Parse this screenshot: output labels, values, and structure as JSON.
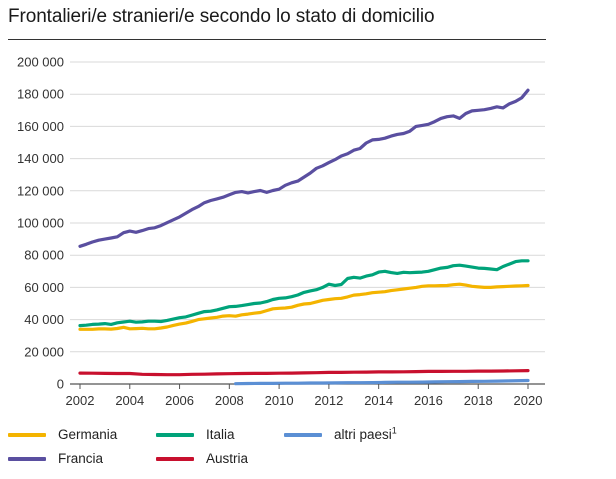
{
  "title": "Frontalieri/e stranieri/e secondo lo stato di domicilio",
  "chart_data": {
    "type": "line",
    "title": "Frontalieri/e stranieri/e secondo lo stato di domicilio",
    "xlabel": "",
    "ylabel": "",
    "xlim": [
      2002,
      2020
    ],
    "ylim": [
      0,
      200000
    ],
    "x_ticks": [
      2002,
      2004,
      2006,
      2008,
      2010,
      2012,
      2014,
      2016,
      2018,
      2020
    ],
    "y_ticks": [
      0,
      20000,
      40000,
      60000,
      80000,
      100000,
      120000,
      140000,
      160000,
      180000,
      200000
    ],
    "y_tick_labels": [
      "0",
      "20 000",
      "40 000",
      "60 000",
      "80 000",
      "100 000",
      "120 000",
      "140 000",
      "160 000",
      "180 000",
      "200 000"
    ],
    "x_tick_labels": [
      "2002",
      "2004",
      "2006",
      "2008",
      "2010",
      "2012",
      "2014",
      "2016",
      "2018",
      "2020"
    ],
    "grid": "horizontal",
    "legend_placement": "bottom",
    "series": [
      {
        "name": "Germania",
        "color": "#f4b400",
        "x": [
          2002.0,
          2002.25,
          2002.5,
          2002.75,
          2003.0,
          2003.25,
          2003.5,
          2003.75,
          2004.0,
          2004.25,
          2004.5,
          2004.75,
          2005.0,
          2005.25,
          2005.5,
          2005.75,
          2006.0,
          2006.25,
          2006.5,
          2006.75,
          2007.0,
          2007.25,
          2007.5,
          2007.75,
          2008.0,
          2008.25,
          2008.5,
          2008.75,
          2009.0,
          2009.25,
          2009.5,
          2009.75,
          2010.0,
          2010.25,
          2010.5,
          2010.75,
          2011.0,
          2011.25,
          2011.5,
          2011.75,
          2012.0,
          2012.25,
          2012.5,
          2012.75,
          2013.0,
          2013.25,
          2013.5,
          2013.75,
          2014.0,
          2014.25,
          2014.5,
          2014.75,
          2015.0,
          2015.25,
          2015.5,
          2015.75,
          2016.0,
          2016.25,
          2016.5,
          2016.75,
          2017.0,
          2017.25,
          2017.5,
          2017.75,
          2018.0,
          2018.25,
          2018.5,
          2018.75,
          2019.0,
          2019.25,
          2019.5,
          2019.75,
          2020.0
        ],
        "values": [
          34000,
          34000,
          34000,
          34200,
          34200,
          34100,
          34500,
          35200,
          34300,
          34400,
          34600,
          34300,
          34300,
          34800,
          35400,
          36400,
          37200,
          37800,
          38900,
          40000,
          40500,
          41000,
          41400,
          42200,
          42400,
          42100,
          43000,
          43400,
          44000,
          44400,
          45600,
          46700,
          47000,
          47200,
          47700,
          48900,
          49700,
          50000,
          51000,
          52000,
          52500,
          53000,
          53200,
          54100,
          55200,
          55500,
          56000,
          56700,
          57000,
          57300,
          58000,
          58500,
          59000,
          59500,
          60000,
          60700,
          61000,
          61000,
          61100,
          61200,
          61700,
          62000,
          61400,
          60700,
          60300,
          60000,
          60000,
          60300,
          60500,
          60700,
          60900,
          61000,
          61200
        ]
      },
      {
        "name": "Italia",
        "color": "#00a37a",
        "x": [
          2002.0,
          2002.25,
          2002.5,
          2002.75,
          2003.0,
          2003.25,
          2003.5,
          2003.75,
          2004.0,
          2004.25,
          2004.5,
          2004.75,
          2005.0,
          2005.25,
          2005.5,
          2005.75,
          2006.0,
          2006.25,
          2006.5,
          2006.75,
          2007.0,
          2007.25,
          2007.5,
          2007.75,
          2008.0,
          2008.25,
          2008.5,
          2008.75,
          2009.0,
          2009.25,
          2009.5,
          2009.75,
          2010.0,
          2010.25,
          2010.5,
          2010.75,
          2011.0,
          2011.25,
          2011.5,
          2011.75,
          2012.0,
          2012.25,
          2012.5,
          2012.75,
          2013.0,
          2013.25,
          2013.5,
          2013.75,
          2014.0,
          2014.25,
          2014.5,
          2014.75,
          2015.0,
          2015.25,
          2015.5,
          2015.75,
          2016.0,
          2016.25,
          2016.5,
          2016.75,
          2017.0,
          2017.25,
          2017.5,
          2017.75,
          2018.0,
          2018.25,
          2018.5,
          2018.75,
          2019.0,
          2019.25,
          2019.5,
          2019.75,
          2020.0
        ],
        "values": [
          36300,
          36500,
          37000,
          37200,
          37500,
          37000,
          38000,
          38500,
          39000,
          38400,
          38600,
          39000,
          39000,
          38800,
          39500,
          40300,
          41200,
          41700,
          42800,
          43900,
          45000,
          45200,
          46000,
          47000,
          48000,
          48200,
          48700,
          49300,
          50000,
          50300,
          51200,
          52500,
          53200,
          53500,
          54200,
          55300,
          56900,
          57800,
          58600,
          60000,
          62000,
          61200,
          61800,
          65500,
          66300,
          65800,
          67000,
          67800,
          69500,
          70000,
          69200,
          68700,
          69400,
          69100,
          69300,
          69500,
          70000,
          71000,
          72000,
          72400,
          73500,
          73800,
          73200,
          72600,
          72000,
          71800,
          71400,
          71000,
          73000,
          74500,
          76000,
          76500,
          76500
        ]
      },
      {
        "name": "altri paesi",
        "name_superscript": "1",
        "color": "#5b8fd4",
        "x": [
          2008.25,
          2008.75,
          2009.25,
          2009.75,
          2010.25,
          2010.75,
          2011.25,
          2011.75,
          2012.25,
          2012.75,
          2013.25,
          2013.75,
          2014.25,
          2014.75,
          2015.25,
          2015.75,
          2016.25,
          2016.75,
          2017.25,
          2017.75,
          2018.25,
          2018.75,
          2019.25,
          2019.75,
          2020.0
        ],
        "values": [
          200,
          300,
          400,
          400,
          500,
          500,
          600,
          600,
          700,
          800,
          800,
          900,
          1000,
          1100,
          1100,
          1200,
          1300,
          1400,
          1500,
          1600,
          1700,
          1800,
          1900,
          2100,
          2200
        ]
      },
      {
        "name": "Francia",
        "color": "#5a4fa0",
        "x": [
          2002.0,
          2002.25,
          2002.5,
          2002.75,
          2003.0,
          2003.25,
          2003.5,
          2003.75,
          2004.0,
          2004.25,
          2004.5,
          2004.75,
          2005.0,
          2005.25,
          2005.5,
          2005.75,
          2006.0,
          2006.25,
          2006.5,
          2006.75,
          2007.0,
          2007.25,
          2007.5,
          2007.75,
          2008.0,
          2008.25,
          2008.5,
          2008.75,
          2009.0,
          2009.25,
          2009.5,
          2009.75,
          2010.0,
          2010.25,
          2010.5,
          2010.75,
          2011.0,
          2011.25,
          2011.5,
          2011.75,
          2012.0,
          2012.25,
          2012.5,
          2012.75,
          2013.0,
          2013.25,
          2013.5,
          2013.75,
          2014.0,
          2014.25,
          2014.5,
          2014.75,
          2015.0,
          2015.25,
          2015.5,
          2015.75,
          2016.0,
          2016.25,
          2016.5,
          2016.75,
          2017.0,
          2017.25,
          2017.5,
          2017.75,
          2018.0,
          2018.25,
          2018.5,
          2018.75,
          2019.0,
          2019.25,
          2019.5,
          2019.75,
          2020.0
        ],
        "values": [
          85500,
          86800,
          88200,
          89300,
          90000,
          90700,
          91400,
          94000,
          95000,
          94200,
          95300,
          96500,
          97000,
          98400,
          100200,
          102000,
          103800,
          106000,
          108300,
          110200,
          112600,
          114000,
          115000,
          116000,
          117500,
          119000,
          119500,
          118700,
          119500,
          120200,
          119000,
          120200,
          121000,
          123400,
          125000,
          126000,
          128500,
          131000,
          134000,
          135500,
          137500,
          139400,
          141600,
          143000,
          145200,
          146300,
          149700,
          151600,
          151900,
          152700,
          154000,
          155000,
          155600,
          157000,
          160000,
          160600,
          161300,
          163000,
          165000,
          166000,
          166500,
          165000,
          168000,
          169600,
          170000,
          170400,
          171200,
          172200,
          171500,
          174000,
          175500,
          177800,
          182500
        ]
      },
      {
        "name": "Austria",
        "color": "#c8102e",
        "x": [
          2002.0,
          2002.5,
          2003.0,
          2003.5,
          2004.0,
          2004.5,
          2005.0,
          2005.5,
          2006.0,
          2006.5,
          2007.0,
          2007.5,
          2008.0,
          2008.5,
          2009.0,
          2009.5,
          2010.0,
          2010.5,
          2011.0,
          2011.5,
          2012.0,
          2012.5,
          2013.0,
          2013.5,
          2014.0,
          2014.5,
          2015.0,
          2015.5,
          2016.0,
          2016.5,
          2017.0,
          2017.5,
          2018.0,
          2018.5,
          2019.0,
          2019.5,
          2020.0
        ],
        "values": [
          6800,
          6700,
          6600,
          6500,
          6500,
          6000,
          5900,
          5800,
          5800,
          6000,
          6100,
          6300,
          6400,
          6500,
          6600,
          6600,
          6700,
          6800,
          6900,
          7000,
          7200,
          7200,
          7300,
          7400,
          7500,
          7500,
          7600,
          7700,
          7800,
          7800,
          7900,
          7900,
          8000,
          8000,
          8100,
          8200,
          8300
        ]
      }
    ]
  }
}
